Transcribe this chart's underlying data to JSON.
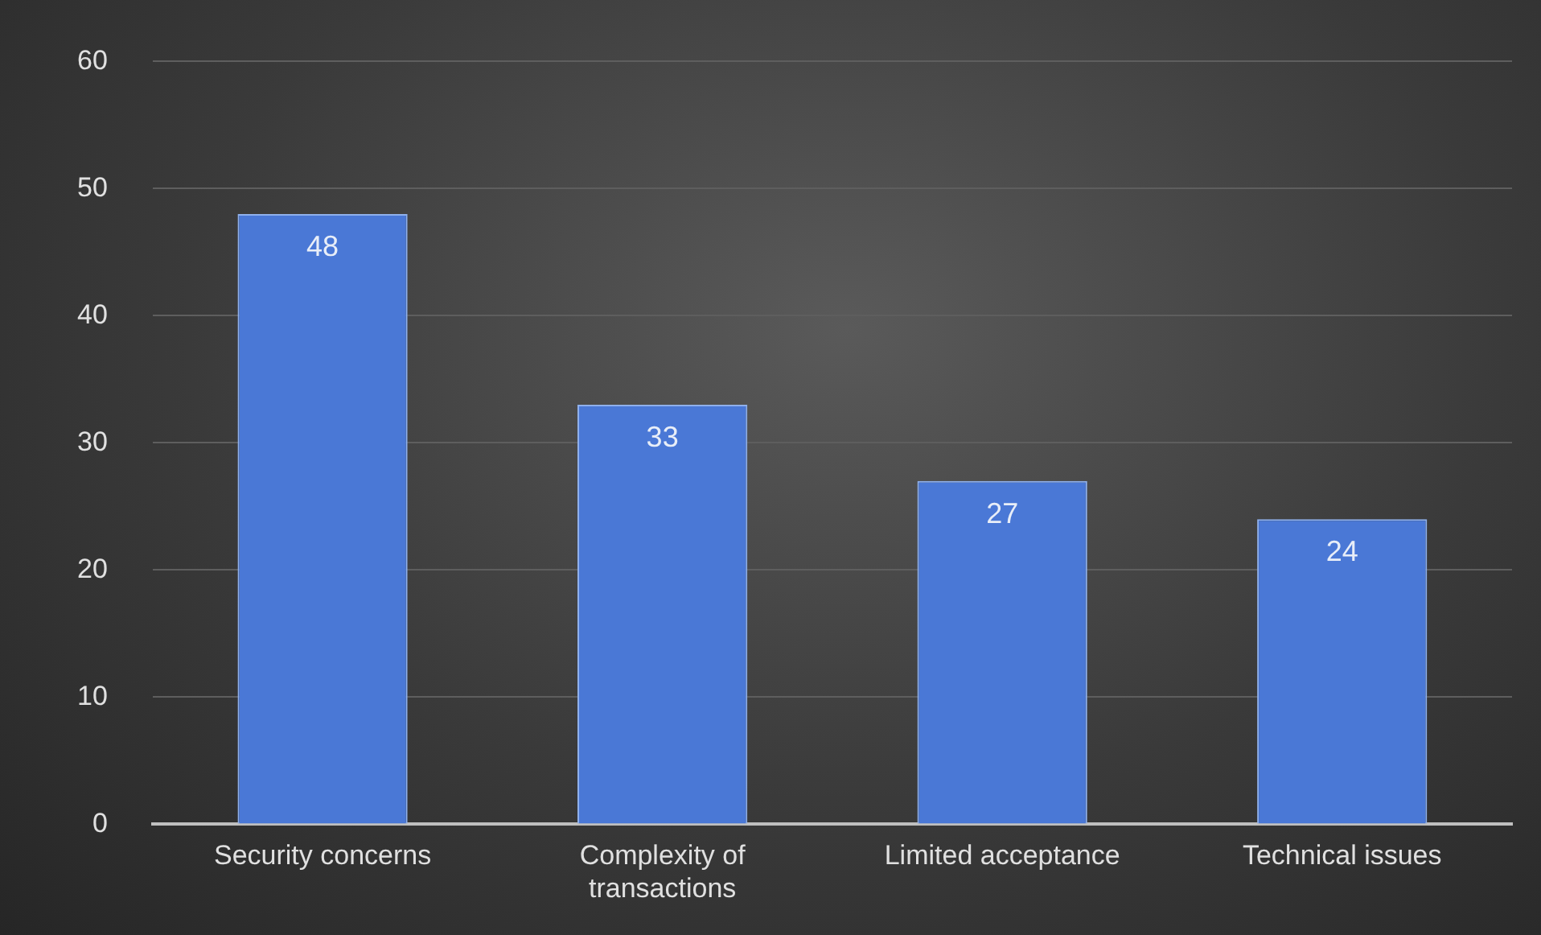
{
  "chart_data": {
    "type": "bar",
    "categories": [
      "Security concerns",
      "Complexity of transactions",
      "Limited acceptance",
      "Technical issues"
    ],
    "values": [
      48,
      33,
      27,
      24
    ],
    "color": "#4a78d6",
    "ylim": [
      0,
      60
    ],
    "yticks": [
      0,
      10,
      20,
      30,
      40,
      50,
      60
    ],
    "grid": "y",
    "data_labels": true
  }
}
